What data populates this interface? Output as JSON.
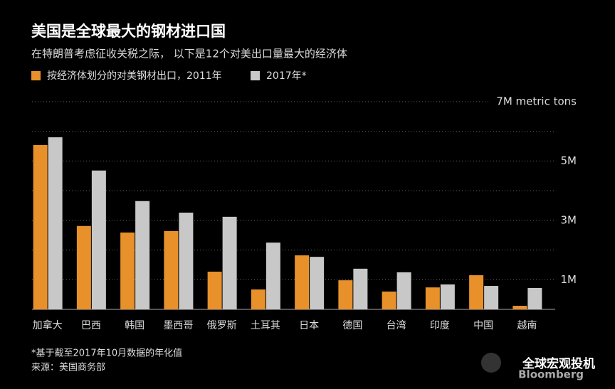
{
  "chart_data": {
    "type": "bar",
    "title": "美国是全球最大的钢材进口国",
    "subtitle": "在特朗普考虑征收关税之际， 以下是12个对美出口量最大的经济体",
    "categories": [
      "加拿大",
      "巴西",
      "韩国",
      "墨西哥",
      "俄罗斯",
      "土耳其",
      "日本",
      "德国",
      "台湾",
      "印度",
      "中国",
      "越南"
    ],
    "series": [
      {
        "name": "按经济体划分的对美钢材出口，2011年",
        "color": "#e8912a",
        "values": [
          5.54,
          2.81,
          2.59,
          2.64,
          1.27,
          0.67,
          1.82,
          0.98,
          0.6,
          0.74,
          1.15,
          0.12
        ]
      },
      {
        "name": "2017年*",
        "color": "#c8c8c8",
        "values": [
          5.8,
          4.68,
          3.65,
          3.26,
          3.12,
          2.25,
          1.77,
          1.37,
          1.25,
          0.84,
          0.79,
          0.72
        ]
      }
    ],
    "ylim": [
      0,
      7
    ],
    "yticks": [
      {
        "value": 1,
        "label": "1M"
      },
      {
        "value": 3,
        "label": "3M"
      },
      {
        "value": 5,
        "label": "5M"
      },
      {
        "value": 7,
        "label": "7M metric tons"
      }
    ],
    "minor_yticks": [
      2,
      4,
      6
    ],
    "grid": true,
    "notes": [
      "*基于截至2017年10月数据的年化值",
      "来源：美国商务部"
    ],
    "watermark": "全球宏观投机",
    "brand": "Bloomberg"
  }
}
